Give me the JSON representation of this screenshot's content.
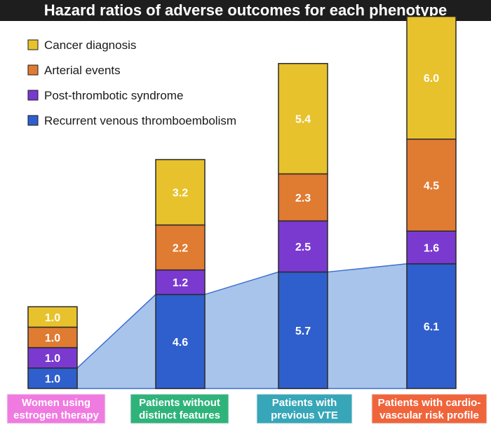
{
  "chart_data": {
    "type": "bar",
    "stacked": true,
    "title": "Hazard ratios of adverse outcomes for each phenotype",
    "xlabel": "",
    "ylabel": "",
    "legend_position": "top-left",
    "grid": false,
    "categories": [
      "Women using estrogen therapy",
      "Patients without distinct features",
      "Patients with previous VTE",
      "Patients with cardio-vascular risk profile"
    ],
    "category_label_lines": [
      [
        "Women using",
        "estrogen therapy"
      ],
      [
        "Patients without",
        "distinct features"
      ],
      [
        "Patients with",
        "previous VTE"
      ],
      [
        "Patients with cardio-",
        "vascular risk profile"
      ]
    ],
    "category_colors": [
      "#f07be0",
      "#2fb37a",
      "#36a6b8",
      "#f0643c"
    ],
    "series": [
      {
        "name": "Recurrent venous thromboembolism",
        "color": "#2f5fcc",
        "values": [
          1.0,
          4.6,
          5.7,
          6.1
        ]
      },
      {
        "name": "Post-thrombotic syndrome",
        "color": "#7a3ad0",
        "values": [
          1.0,
          1.2,
          2.5,
          1.6
        ]
      },
      {
        "name": "Arterial events",
        "color": "#e07b32",
        "values": [
          1.0,
          2.2,
          2.3,
          4.5
        ]
      },
      {
        "name": "Cancer diagnosis",
        "color": "#e8c22c",
        "values": [
          1.0,
          3.2,
          5.4,
          6.0
        ]
      }
    ],
    "legend_order": [
      "Cancer diagnosis",
      "Arterial events",
      "Post-thrombotic syndrome",
      "Recurrent venous thromboembolism"
    ]
  }
}
